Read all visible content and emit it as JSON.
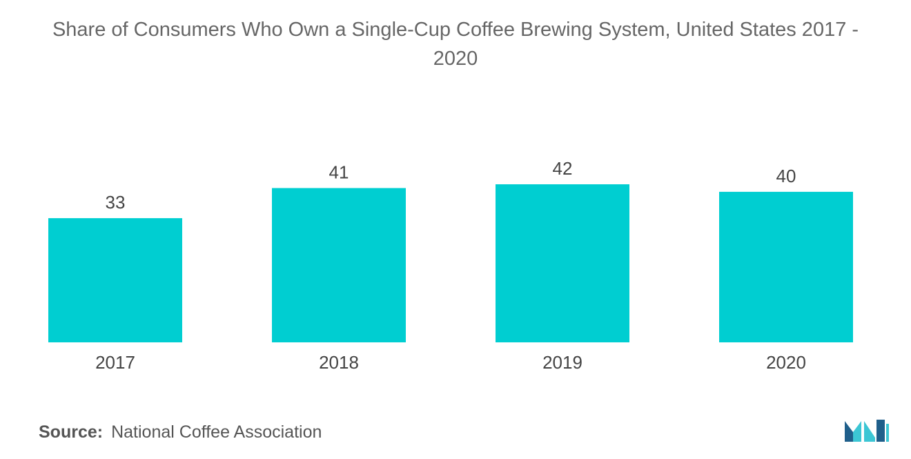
{
  "title": {
    "line1": "Share of Consumers Who Own a Single-Cup Coffee Brewing System, United States 2017 -",
    "line2": "2020"
  },
  "source": {
    "label": "Source:",
    "text": "National Coffee Association"
  },
  "colors": {
    "bar": "#00CED1",
    "logo_dark": "#1f5f8b",
    "logo_light": "#3cc6d4"
  },
  "logo": {
    "icon": "mordor-intelligence-logo-icon"
  },
  "chart_data": {
    "type": "bar",
    "categories": [
      "2017",
      "2018",
      "2019",
      "2020"
    ],
    "values": [
      33,
      41,
      42,
      40
    ],
    "title": "Share of Consumers Who Own a Single-Cup Coffee Brewing System, United States 2017 - 2020",
    "xlabel": "",
    "ylabel": "",
    "ylim": [
      0,
      42
    ],
    "grid": false,
    "legend": "none",
    "data_labels": true
  }
}
